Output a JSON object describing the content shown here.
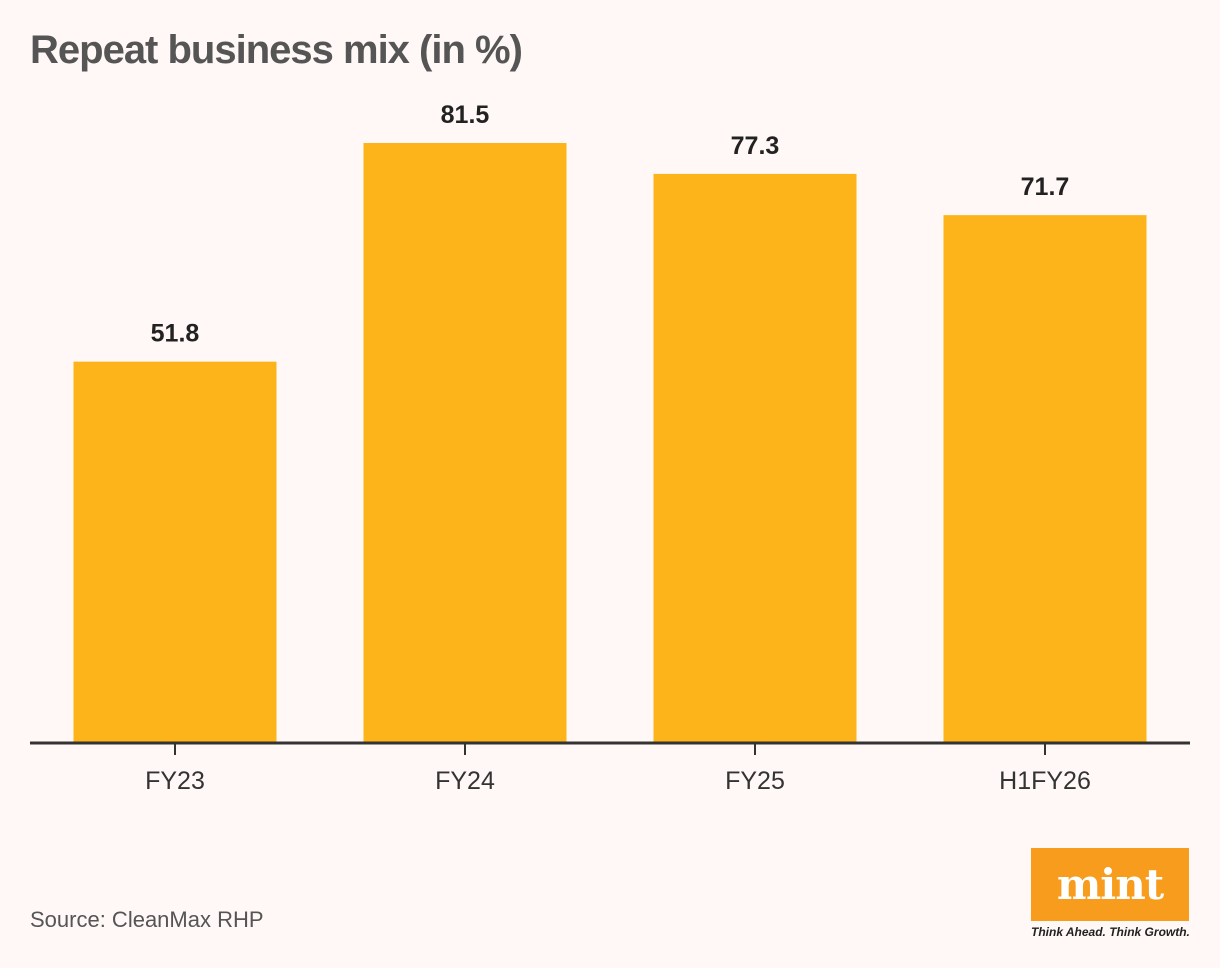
{
  "title": "Repeat business mix (in %)",
  "source": "Source: CleanMax RHP",
  "logo": {
    "wordmark": "mint",
    "tagline": "Think Ahead. Think Growth."
  },
  "colors": {
    "bar": "#fdb31a",
    "axis": "#333333",
    "title": "#555555",
    "background": "#fff8f6",
    "logo_bg": "#f79c1c"
  },
  "chart_data": {
    "type": "bar",
    "title": "Repeat business mix (in %)",
    "categories": [
      "FY23",
      "FY24",
      "FY25",
      "H1FY26"
    ],
    "values": [
      51.8,
      81.5,
      77.3,
      71.7
    ],
    "data_labels": [
      "51.8",
      "81.5",
      "77.3",
      "71.7"
    ],
    "xlabel": "",
    "ylabel": "",
    "ylim": [
      0,
      81.5
    ],
    "grid": false,
    "legend": "none"
  }
}
